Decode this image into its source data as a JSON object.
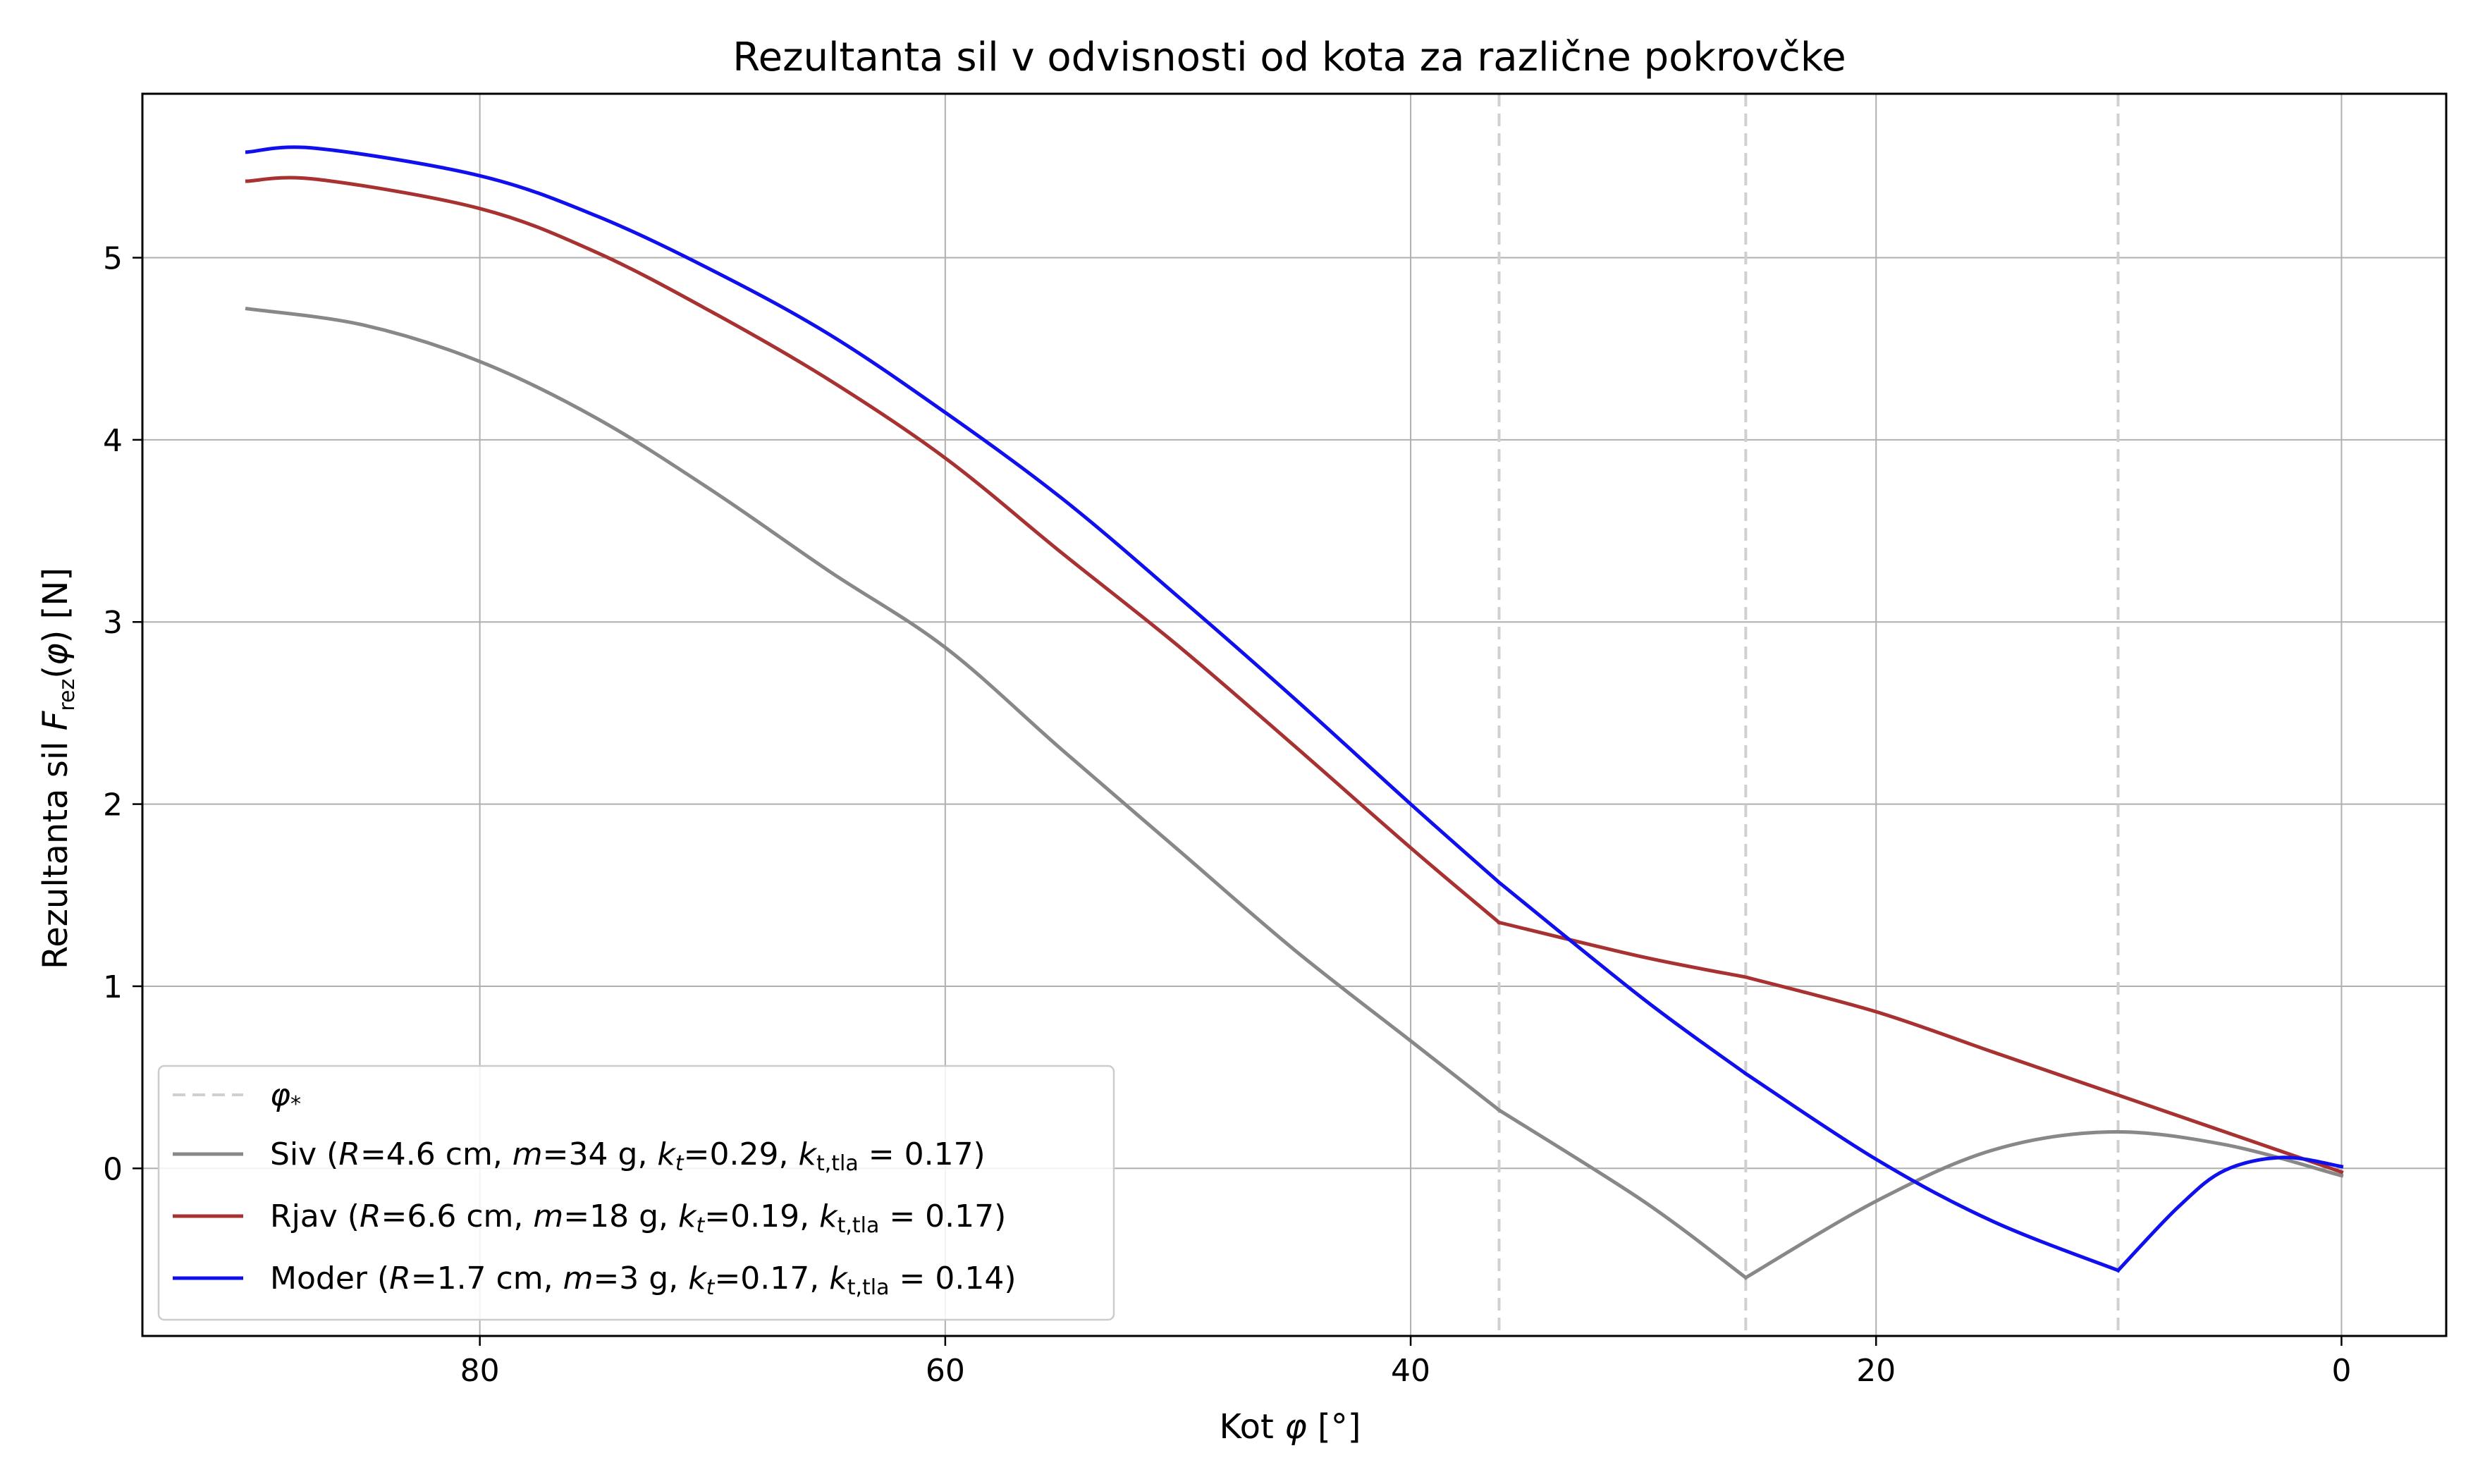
{
  "chart_data": {
    "type": "line",
    "title": "Rezultanta sil v odvisnosti od kota za različne pokrovčke",
    "xlabel": {
      "pre": "Kot ",
      "sym": "φ",
      "post": " [°]"
    },
    "ylabel": {
      "pre": "Rezultanta sil ",
      "sym": "F",
      "sub": "rez",
      "mid": "(",
      "arg": "φ",
      "post": ") [N]"
    },
    "xlim": [
      94.5,
      -4.5
    ],
    "ylim": [
      -0.92,
      5.9
    ],
    "x_inverted": true,
    "grid": true,
    "x_ticks": [
      80,
      60,
      40,
      20,
      0
    ],
    "y_ticks": [
      0,
      1,
      2,
      3,
      4,
      5
    ],
    "phi_star": [
      36.2,
      25.6,
      9.6
    ],
    "legend_position": "lower-left",
    "legend": [
      {
        "kind": "phi",
        "symbol": "φ",
        "sub": "*",
        "color": "#d0d0d0",
        "dashed": true
      },
      {
        "kind": "series",
        "series_index": 0,
        "parts": [
          {
            "t": "Siv ("
          },
          {
            "t": "R",
            "i": true
          },
          {
            "t": "=4.6 cm, "
          },
          {
            "t": "m",
            "i": true
          },
          {
            "t": "=34 g, "
          },
          {
            "t": "k",
            "i": true
          },
          {
            "t": "t",
            "sub": true,
            "i": true
          },
          {
            "t": "=0.29, "
          },
          {
            "t": "k",
            "i": true
          },
          {
            "t": "t,tla",
            "sub": true
          },
          {
            "t": " = 0.17)"
          }
        ]
      },
      {
        "kind": "series",
        "series_index": 1,
        "parts": [
          {
            "t": "Rjav ("
          },
          {
            "t": "R",
            "i": true
          },
          {
            "t": "=6.6 cm, "
          },
          {
            "t": "m",
            "i": true
          },
          {
            "t": "=18 g, "
          },
          {
            "t": "k",
            "i": true
          },
          {
            "t": "t",
            "sub": true,
            "i": true
          },
          {
            "t": "=0.19, "
          },
          {
            "t": "k",
            "i": true
          },
          {
            "t": "t,tla",
            "sub": true
          },
          {
            "t": " = 0.17)"
          }
        ]
      },
      {
        "kind": "series",
        "series_index": 2,
        "parts": [
          {
            "t": "Moder ("
          },
          {
            "t": "R",
            "i": true
          },
          {
            "t": "=1.7 cm, "
          },
          {
            "t": "m",
            "i": true
          },
          {
            "t": "=3 g, "
          },
          {
            "t": "k",
            "i": true
          },
          {
            "t": "t",
            "sub": true,
            "i": true
          },
          {
            "t": "=0.17, "
          },
          {
            "t": "k",
            "i": true
          },
          {
            "t": "t,tla",
            "sub": true
          },
          {
            "t": " = 0.14)"
          }
        ]
      }
    ],
    "series": [
      {
        "color": "#888888",
        "x": [
          90,
          85,
          80,
          75,
          70,
          65,
          60,
          55,
          50,
          45,
          40,
          36.2,
          30,
          25.6,
          20,
          15,
          10,
          5,
          0
        ],
        "y": [
          4.72,
          4.63,
          4.43,
          4.12,
          3.72,
          3.28,
          2.86,
          2.3,
          1.75,
          1.2,
          0.7,
          0.32,
          -0.18,
          -0.6,
          -0.18,
          0.1,
          0.2,
          0.13,
          -0.04
        ]
      },
      {
        "color": "#a83232",
        "x": [
          90,
          87,
          80,
          75,
          70,
          65,
          60,
          55,
          50,
          45,
          40,
          36.2,
          30,
          25.6,
          20,
          15,
          10,
          5,
          0
        ],
        "y": [
          5.42,
          5.43,
          5.27,
          5.03,
          4.7,
          4.33,
          3.9,
          3.38,
          2.87,
          2.32,
          1.76,
          1.35,
          1.16,
          1.05,
          0.86,
          0.64,
          0.42,
          0.2,
          -0.02
        ]
      },
      {
        "color": "#1010ee",
        "x": [
          90,
          87,
          80,
          75,
          70,
          65,
          60,
          55,
          50,
          45,
          40,
          36.2,
          30,
          25.6,
          20,
          15,
          9.6,
          7,
          5,
          2.5,
          0
        ],
        "y": [
          5.58,
          5.6,
          5.45,
          5.23,
          4.93,
          4.58,
          4.15,
          3.68,
          3.14,
          2.58,
          2.0,
          1.57,
          0.93,
          0.52,
          0.05,
          -0.29,
          -0.56,
          -0.21,
          -0.01,
          0.06,
          0.01
        ]
      }
    ]
  }
}
